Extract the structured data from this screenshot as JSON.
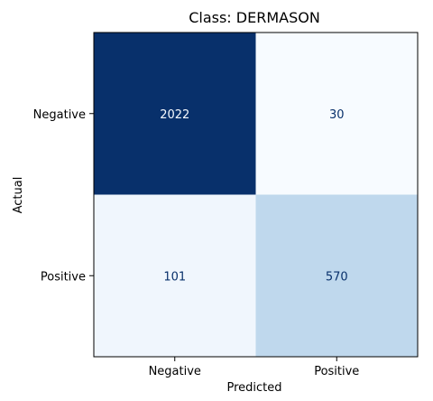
{
  "chart_data": {
    "type": "heatmap",
    "title": "Class: DERMASON",
    "xlabel": "Predicted",
    "ylabel": "Actual",
    "x_categories": [
      "Negative",
      "Positive"
    ],
    "y_categories": [
      "Negative",
      "Positive"
    ],
    "values": [
      [
        2022,
        30
      ],
      [
        101,
        570
      ]
    ],
    "colormap": "Blues",
    "colors": {
      "dark_text": "#08306b",
      "light_text": "#f7fbff"
    }
  }
}
